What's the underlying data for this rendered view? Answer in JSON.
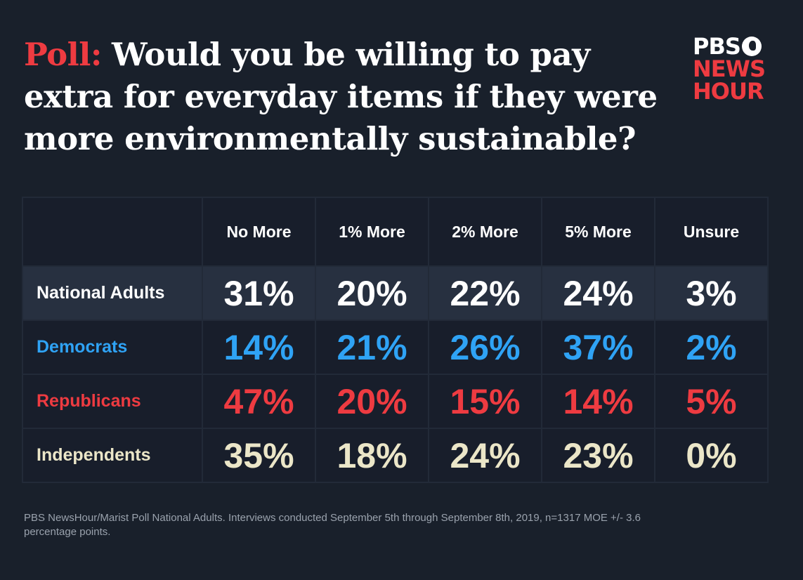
{
  "title": {
    "prefix": "Poll:",
    "question": "Would you be willing to pay extra for everyday items if they were more environmentally sustainable?"
  },
  "logo": {
    "line1": "PBS",
    "line2": "NEWS",
    "line3": "HOUR"
  },
  "colors": {
    "background": "#19202b",
    "democrats": "#2fa3f5",
    "republicans": "#ee3b41",
    "independents": "#ebe6c8",
    "national": "#ffffff",
    "highlight_row": "#273040"
  },
  "chart_data": {
    "type": "table",
    "columns": [
      "No More",
      "1% More",
      "2% More",
      "5% More",
      "Unsure"
    ],
    "rows": [
      {
        "label": "National Adults",
        "values": [
          "31%",
          "20%",
          "22%",
          "24%",
          "3%"
        ],
        "color": "#ffffff"
      },
      {
        "label": "Democrats",
        "values": [
          "14%",
          "21%",
          "26%",
          "37%",
          "2%"
        ],
        "color": "#2fa3f5"
      },
      {
        "label": "Republicans",
        "values": [
          "47%",
          "20%",
          "15%",
          "14%",
          "5%"
        ],
        "color": "#ee3b41"
      },
      {
        "label": "Independents",
        "values": [
          "35%",
          "18%",
          "24%",
          "23%",
          "0%"
        ],
        "color": "#ebe6c8"
      }
    ]
  },
  "footer": "PBS NewsHour/Marist Poll National Adults. Interviews conducted September 5th through September 8th, 2019, n=1317 MOE +/- 3.6 percentage points."
}
